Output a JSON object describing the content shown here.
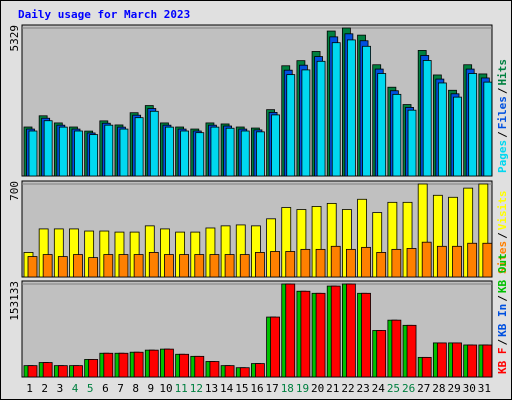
{
  "chart_data": [
    {
      "type": "bar",
      "title": "Daily usage for March 2023",
      "separator": "/",
      "ylim": [
        0,
        5329
      ],
      "yticks": [
        5329
      ],
      "series": [
        {
          "name": "Pages",
          "color": "#00d8f0",
          "values": [
            1620,
            1990,
            1760,
            1620,
            1490,
            1830,
            1690,
            2100,
            2330,
            1760,
            1620,
            1560,
            1760,
            1720,
            1620,
            1590,
            2200,
            3650,
            3820,
            4130,
            4800,
            4900,
            4670,
            3690,
            2940,
            2370,
            4160,
            3350,
            2840,
            3690,
            3380
          ]
        },
        {
          "name": "Files",
          "color": "#0050e0",
          "values": [
            1690,
            2080,
            1830,
            1690,
            1550,
            1900,
            1760,
            2190,
            2430,
            1830,
            1690,
            1620,
            1830,
            1800,
            1690,
            1660,
            2290,
            3810,
            3990,
            4300,
            5010,
            5120,
            4870,
            3850,
            3070,
            2470,
            4340,
            3490,
            2960,
            3850,
            3530
          ]
        },
        {
          "name": "Hits",
          "color": "#008040",
          "values": [
            1764,
            2168,
            1911,
            1764,
            1617,
            1985,
            1838,
            2279,
            2536,
            1911,
            1764,
            1691,
            1911,
            1874,
            1764,
            1727,
            2389,
            3969,
            4153,
            4484,
            5219,
            5329,
            5072,
            4006,
            3197,
            2573,
            4521,
            3638,
            3087,
            4006,
            3675
          ]
        }
      ]
    },
    {
      "type": "bar",
      "ylim": [
        0,
        700
      ],
      "yticks": [
        700
      ],
      "series": [
        {
          "name": "Sites",
          "color": "#ff8000",
          "values": [
            154,
            169,
            154,
            169,
            146,
            169,
            169,
            169,
            185,
            169,
            169,
            169,
            169,
            169,
            169,
            185,
            192,
            192,
            208,
            208,
            231,
            208,
            223,
            185,
            208,
            215,
            262,
            231,
            231,
            254,
            254
          ]
        },
        {
          "name": "Visits",
          "color": "#ffff00",
          "values": [
            185,
            362,
            362,
            362,
            346,
            346,
            338,
            338,
            385,
            362,
            338,
            338,
            369,
            385,
            392,
            385,
            438,
            523,
            508,
            531,
            554,
            508,
            585,
            485,
            562,
            562,
            700,
            615,
            600,
            669,
            700
          ]
        }
      ]
    },
    {
      "type": "bar",
      "ylim": [
        0,
        153133
      ],
      "yticks": [
        153133
      ],
      "categories": [
        "1",
        "2",
        "3",
        "4",
        "5",
        "6",
        "7",
        "8",
        "9",
        "10",
        "11",
        "12",
        "13",
        "14",
        "15",
        "16",
        "17",
        "18",
        "19",
        "20",
        "21",
        "22",
        "23",
        "24",
        "25",
        "26",
        "27",
        "28",
        "29",
        "30",
        "31"
      ],
      "highlighted": [
        3,
        4,
        10,
        11,
        17,
        18,
        24,
        25
      ],
      "highlight_color": "#008040",
      "series": [
        {
          "name": "KB F",
          "color": "#ff0000",
          "values": [
            18700,
            23800,
            18700,
            18700,
            28900,
            39100,
            39100,
            40800,
            44200,
            45900,
            37400,
            34000,
            25500,
            18700,
            15300,
            22100,
            98700,
            153100,
            141200,
            137800,
            149700,
            153100,
            137800,
            76600,
            93600,
            85100,
            32300,
            56100,
            56100,
            52700,
            52700
          ]
        },
        {
          "name": "KB In",
          "color": "#0050e0"
        },
        {
          "name": "KB Out",
          "color": "#00c000",
          "values": [
            18716,
            23821,
            18716,
            18716,
            28925,
            39134,
            39134,
            40835,
            44238,
            45939,
            37432,
            34029,
            25522,
            18716,
            15313,
            22120,
            98685,
            153133,
            141222,
            137819,
            149730,
            153133,
            137819,
            76566,
            93581,
            85075,
            32327,
            56148,
            56148,
            52745,
            52745
          ]
        }
      ]
    }
  ]
}
